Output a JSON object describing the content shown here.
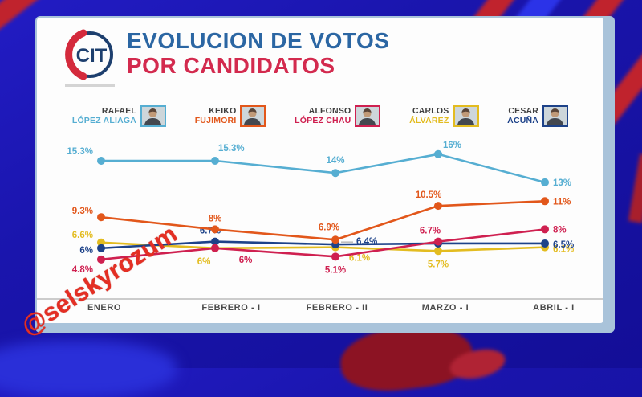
{
  "watermark": "@selskyrozum",
  "logo": {
    "text": "CIT"
  },
  "header": {
    "title_line1": "EVOLUCION DE VOTOS",
    "title_line2": "POR CANDIDATOS",
    "title_color1": "#2b66a3",
    "title_color2": "#d32a4e"
  },
  "candidates": [
    {
      "first": "RAFAEL",
      "last": "LÓPEZ ALIAGA",
      "color": "#56aed2"
    },
    {
      "first": "KEIKO",
      "last": "FUJIMORI",
      "color": "#e2571b"
    },
    {
      "first": "ALFONSO",
      "last": "LÓPEZ CHAU",
      "color": "#cf2050"
    },
    {
      "first": "CARLOS",
      "last": "ÁLVAREZ",
      "color": "#e3bc20"
    },
    {
      "first": "CESAR",
      "last": "ACUÑA",
      "color": "#1d4289"
    }
  ],
  "chart_data": {
    "type": "line",
    "categories": [
      "ENERO",
      "FEBRERO - I",
      "FEBRERO - II",
      "MARZO - I",
      "ABRIL - I"
    ],
    "series": [
      {
        "name": "Rafael López Aliaga",
        "color": "#56aed2",
        "values": [
          15.3,
          15.3,
          14,
          16,
          13
        ],
        "labels": [
          "15.3%",
          "15.3%",
          "14%",
          "16%",
          "13%"
        ]
      },
      {
        "name": "Keiko Fujimori",
        "color": "#e2571b",
        "values": [
          9.3,
          8,
          6.9,
          10.5,
          11
        ],
        "labels": [
          "9.3%",
          "8%",
          "6.9%",
          "10.5%",
          "11%"
        ]
      },
      {
        "name": "Alfonso López Chau",
        "color": "#cf2050",
        "values": [
          4.8,
          6,
          5.1,
          6.7,
          8
        ],
        "labels": [
          "4.8%",
          "6%",
          "5.1%",
          "6.7%",
          "8%"
        ]
      },
      {
        "name": "Carlos Álvarez",
        "color": "#e3bc20",
        "values": [
          6.6,
          6,
          6.1,
          5.7,
          6.1
        ],
        "labels": [
          "6.6%",
          "6%",
          "6.1%",
          "5.7%",
          "6.1%"
        ]
      },
      {
        "name": "Cesar Acuña",
        "color": "#1d4289",
        "values": [
          6,
          6.7,
          6.4,
          6.5,
          6.5
        ],
        "labels": [
          "6%",
          "6.7%",
          "6.4%",
          "",
          "6.5%"
        ]
      }
    ],
    "ylim": [
      3,
      18
    ],
    "grid": false,
    "legend_position": "top",
    "data_labels": true
  }
}
